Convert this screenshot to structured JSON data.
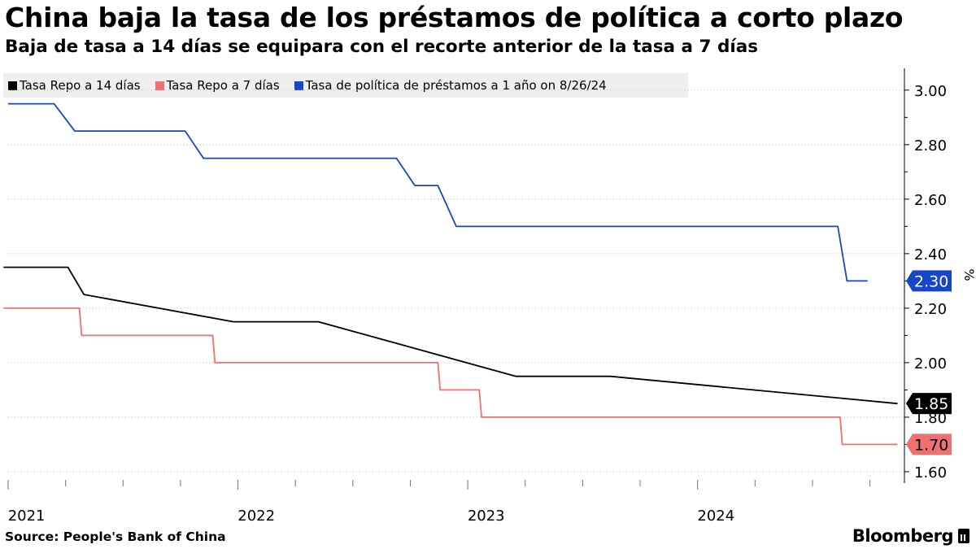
{
  "header": {
    "title": "China baja la tasa de los préstamos de política a corto plazo",
    "subtitle": "Baja de tasa a 14 días se equipara con el recorte anterior de la tasa a 7 días"
  },
  "footer": {
    "source": "Source: People's Bank of China",
    "brand": "Bloomberg"
  },
  "chart_data": {
    "type": "line",
    "title": "China baja la tasa de los préstamos de política a corto plazo",
    "subtitle": "Baja de tasa a 14 días se equipara con el recorte anterior de la tasa a 7 días",
    "ylabel": "%",
    "ylim": [
      1.57,
      3.08
    ],
    "yticks": [
      1.6,
      1.8,
      2.0,
      2.2,
      2.4,
      2.6,
      2.8,
      3.0
    ],
    "ytick_labels": [
      "1.60",
      "1.80",
      "2.00",
      "2.20",
      "2.40",
      "2.60",
      "2.80",
      "3.00"
    ],
    "xlim": [
      2021.0,
      2024.9
    ],
    "xticks": [
      2021.0,
      2022.0,
      2023.0,
      2024.0
    ],
    "xtick_labels": [
      "2021",
      "2022",
      "2023",
      "2024"
    ],
    "grid": "horizontal-dotted",
    "legend_position": "top-left",
    "series": [
      {
        "name": "Tasa Repo a 14 días",
        "color": "#000000",
        "last_label": "1.85",
        "points": [
          [
            2020.98,
            2.35
          ],
          [
            2021.26,
            2.35
          ],
          [
            2021.33,
            2.25
          ],
          [
            2021.98,
            2.15
          ],
          [
            2022.35,
            2.15
          ],
          [
            2023.21,
            1.95
          ],
          [
            2023.62,
            1.95
          ],
          [
            2024.87,
            1.85
          ]
        ]
      },
      {
        "name": "Tasa Repo a 7 días",
        "color": "#f07070",
        "last_label": "1.70",
        "points": [
          [
            2020.98,
            2.2
          ],
          [
            2021.31,
            2.2
          ],
          [
            2021.32,
            2.1
          ],
          [
            2021.89,
            2.1
          ],
          [
            2021.9,
            2.0
          ],
          [
            2022.87,
            2.0
          ],
          [
            2022.88,
            1.9
          ],
          [
            2023.05,
            1.9
          ],
          [
            2023.06,
            1.8
          ],
          [
            2024.62,
            1.8
          ],
          [
            2024.63,
            1.7
          ],
          [
            2024.87,
            1.7
          ]
        ]
      },
      {
        "name": "Tasa de política de préstamos a 1 año on 8/26/24",
        "color": "#1747c8",
        "last_label": "2.30",
        "points": [
          [
            2021.0,
            2.95
          ],
          [
            2021.2,
            2.95
          ],
          [
            2021.29,
            2.85
          ],
          [
            2021.77,
            2.85
          ],
          [
            2021.85,
            2.75
          ],
          [
            2022.69,
            2.75
          ],
          [
            2022.77,
            2.65
          ],
          [
            2022.87,
            2.65
          ],
          [
            2022.95,
            2.5
          ],
          [
            2024.61,
            2.5
          ],
          [
            2024.65,
            2.3
          ],
          [
            2024.74,
            2.3
          ]
        ]
      }
    ]
  }
}
